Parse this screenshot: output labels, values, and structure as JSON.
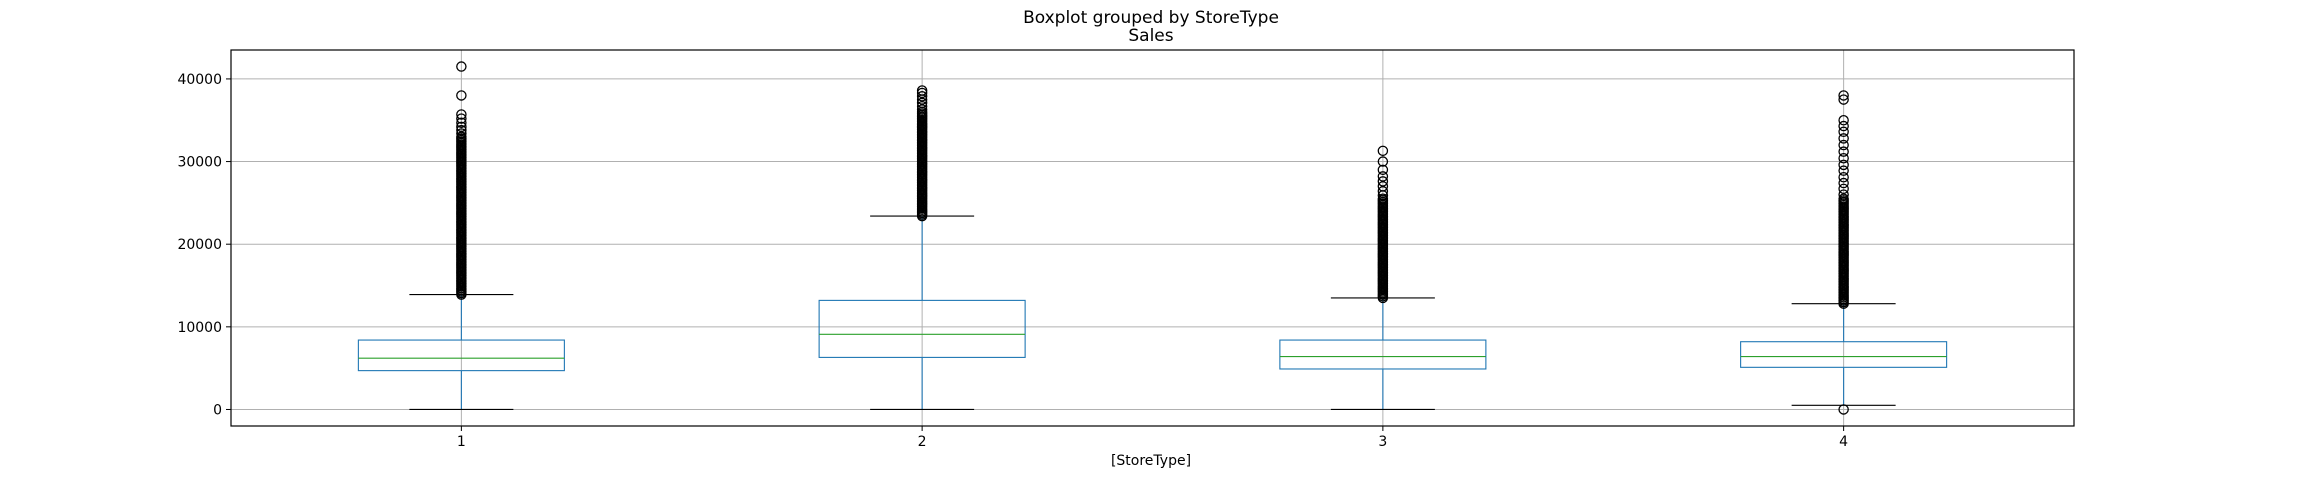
{
  "chart_data": {
    "type": "boxplot",
    "title": "Boxplot grouped by StoreType",
    "subtitle": "Sales",
    "xlabel": "[StoreType]",
    "ylabel": "",
    "categories": [
      "1",
      "2",
      "3",
      "4"
    ],
    "ylim": [
      -2000,
      43500
    ],
    "yticks": [
      0,
      10000,
      20000,
      30000,
      40000
    ],
    "ytick_labels": [
      "0",
      "10000",
      "20000",
      "30000",
      "40000"
    ],
    "grid": true,
    "colors": {
      "box": "#1f77b4",
      "median": "#2ca02c",
      "whisker": "#1f77b4",
      "cap": "#000000",
      "flier": "#000000",
      "grid": "#b0b0b0",
      "axes": "#000000"
    },
    "boxes": [
      {
        "category": "1",
        "whisker_low": 0,
        "q1": 4700,
        "median": 6200,
        "q3": 8400,
        "whisker_high": 13900,
        "flier_range": [
          13900,
          33000
        ],
        "fliers": [
          33400,
          33800,
          34200,
          34700,
          35200,
          35700,
          38000,
          41500
        ]
      },
      {
        "category": "2",
        "whisker_low": 0,
        "q1": 6300,
        "median": 9100,
        "q3": 13200,
        "whisker_high": 23400,
        "flier_range": [
          23400,
          36000
        ],
        "fliers": [
          36300,
          36700,
          37100,
          37500,
          37900,
          38300,
          38600
        ]
      },
      {
        "category": "3",
        "whisker_low": 0,
        "q1": 4900,
        "median": 6400,
        "q3": 8400,
        "whisker_high": 13500,
        "flier_range": [
          13500,
          25500
        ],
        "fliers": [
          25900,
          26400,
          27000,
          27600,
          28200,
          29000,
          30000,
          31300
        ]
      },
      {
        "category": "4",
        "whisker_low": 500,
        "q1": 5100,
        "median": 6400,
        "q3": 8200,
        "whisker_high": 12800,
        "flier_range": [
          12800,
          25500
        ],
        "fliers": [
          0,
          26000,
          26700,
          27400,
          28100,
          28900,
          29600,
          30400,
          31200,
          32000,
          32800,
          33600,
          34300,
          35000,
          37500,
          38000
        ]
      }
    ]
  }
}
